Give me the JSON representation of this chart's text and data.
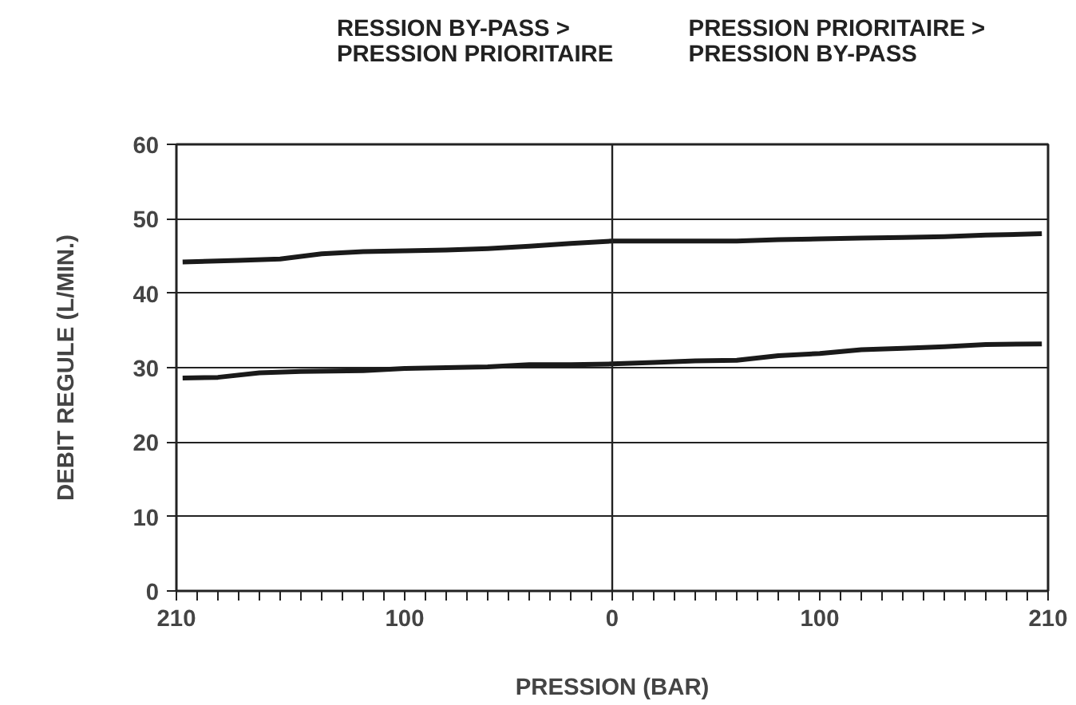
{
  "chart_data": {
    "type": "line",
    "xlabel": "PRESSION (BAR)",
    "ylabel": "DEBIT REGULE (L/MIN.)",
    "annotations": [
      "RESSION BY-PASS >\nPRESSION PRIORITAIRE",
      "PRESSION PRIORITAIRE >\n PRESSION BY-PASS"
    ],
    "series": [
      {
        "color": "#1a1a1a",
        "x": [
          -207,
          -180,
          -160,
          -140,
          -120,
          -100,
          -80,
          -60,
          -40,
          -20,
          0,
          20,
          40,
          60,
          80,
          100,
          120,
          140,
          160,
          180,
          207
        ],
        "values": [
          44.2,
          44.4,
          44.6,
          45.3,
          45.6,
          45.7,
          45.8,
          46.0,
          46.3,
          46.7,
          47.0,
          47.0,
          47.0,
          47.0,
          47.2,
          47.3,
          47.4,
          47.5,
          47.6,
          47.8,
          48.0
        ]
      },
      {
        "color": "#1a1a1a",
        "x": [
          -207,
          -190,
          -170,
          -150,
          -120,
          -100,
          -80,
          -60,
          -40,
          -20,
          0,
          20,
          40,
          60,
          80,
          100,
          120,
          140,
          160,
          180,
          207
        ],
        "values": [
          28.6,
          28.7,
          29.3,
          29.5,
          29.6,
          29.9,
          30.0,
          30.1,
          30.4,
          30.4,
          30.5,
          30.7,
          30.9,
          31.0,
          31.6,
          31.9,
          32.4,
          32.6,
          32.8,
          33.1,
          33.2
        ]
      }
    ],
    "xlim": [
      -210,
      210
    ],
    "xticks": [
      {
        "value": -210,
        "label": "210"
      },
      {
        "value": -200,
        "label": null
      },
      {
        "value": -190,
        "label": null
      },
      {
        "value": -180,
        "label": null
      },
      {
        "value": -170,
        "label": null
      },
      {
        "value": -160,
        "label": null
      },
      {
        "value": -150,
        "label": null
      },
      {
        "value": -140,
        "label": null
      },
      {
        "value": -130,
        "label": null
      },
      {
        "value": -120,
        "label": null
      },
      {
        "value": -110,
        "label": null
      },
      {
        "value": -100,
        "label": "100"
      },
      {
        "value": -90,
        "label": null
      },
      {
        "value": -80,
        "label": null
      },
      {
        "value": -70,
        "label": null
      },
      {
        "value": -60,
        "label": null
      },
      {
        "value": -50,
        "label": null
      },
      {
        "value": -40,
        "label": null
      },
      {
        "value": -30,
        "label": null
      },
      {
        "value": -20,
        "label": null
      },
      {
        "value": -10,
        "label": null
      },
      0,
      {
        "value": 10,
        "label": null
      },
      {
        "value": 20,
        "label": null
      },
      {
        "value": 30,
        "label": null
      },
      {
        "value": 40,
        "label": null
      },
      {
        "value": 50,
        "label": null
      },
      {
        "value": 60,
        "label": null
      },
      {
        "value": 70,
        "label": null
      },
      {
        "value": 80,
        "label": null
      },
      {
        "value": 90,
        "label": null
      },
      100,
      {
        "value": 110,
        "label": null
      },
      {
        "value": 120,
        "label": null
      },
      {
        "value": 130,
        "label": null
      },
      {
        "value": 140,
        "label": null
      },
      {
        "value": 150,
        "label": null
      },
      {
        "value": 160,
        "label": null
      },
      {
        "value": 170,
        "label": null
      },
      {
        "value": 180,
        "label": null
      },
      {
        "value": 190,
        "label": null
      },
      {
        "value": 200,
        "label": null
      },
      210
    ],
    "ylim": [
      0,
      60
    ],
    "yticks": [
      0,
      10,
      20,
      30,
      40,
      50,
      60
    ],
    "grid": "y",
    "marker": "none",
    "line_style": "solid",
    "ref_lines": [
      {
        "axis": "x",
        "value": 0,
        "label": null
      }
    ]
  }
}
